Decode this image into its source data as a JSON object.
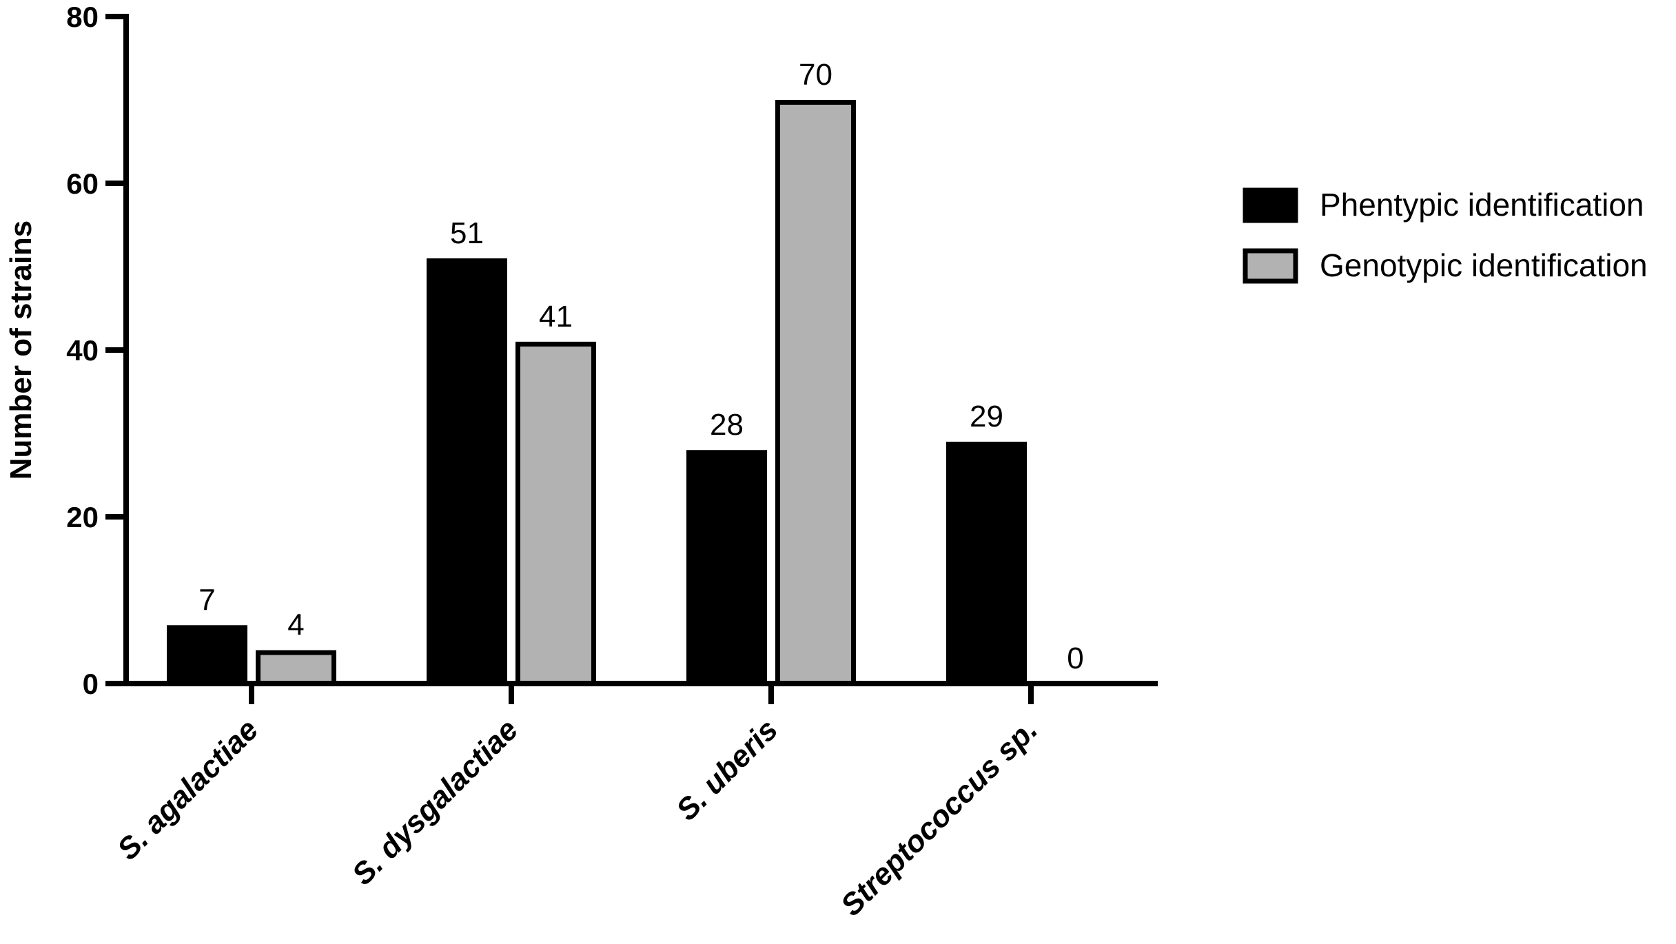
{
  "chart_data": {
    "type": "bar",
    "title": "",
    "xlabel": "",
    "ylabel": "Number of strains",
    "ylim": [
      0,
      80
    ],
    "yticks": [
      0,
      20,
      40,
      60,
      80
    ],
    "categories": [
      "S. agalactiae",
      "S. dysgalactiae",
      "S. uberis",
      "Streptococcus sp."
    ],
    "series": [
      {
        "name": "Phentypic identification",
        "color": "#000000",
        "values": [
          7,
          51,
          28,
          29
        ]
      },
      {
        "name": "Genotypic identification",
        "color": "#b2b2b2",
        "values": [
          4,
          41,
          70,
          0
        ]
      }
    ],
    "legend": "right",
    "grid": false,
    "data_labels": true
  }
}
